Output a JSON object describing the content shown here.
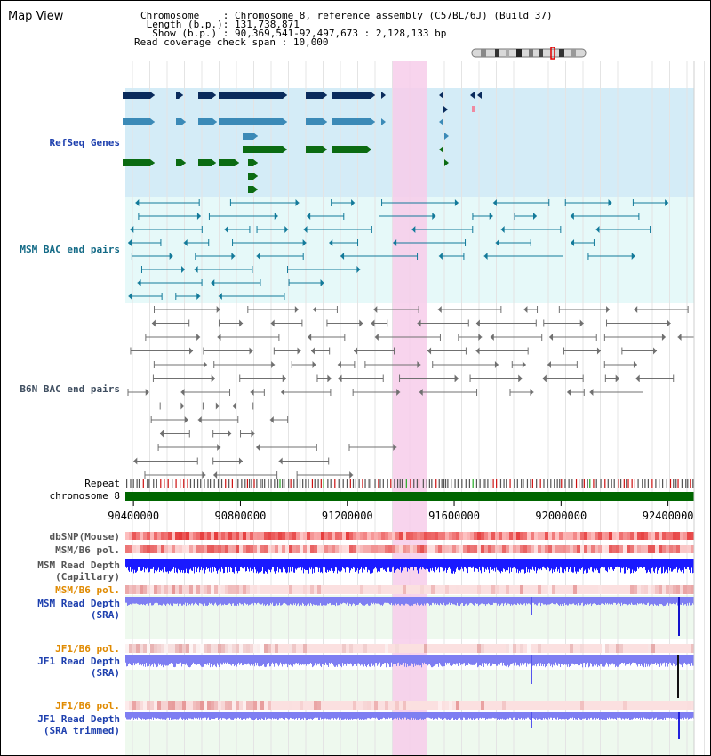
{
  "header": {
    "title": "Map View",
    "info_rows": [
      {
        "label": "Chromosome    ",
        "value": ": Chromosome 8, reference assembly (C57BL/6J) (Build 37)"
      },
      {
        "label": " Length (b.p.)",
        "value": ": 131,738,871"
      },
      {
        "label": "  Show (b.p.) ",
        "value": ": 90,369,541-92,497,673 : 2,128,133 bp"
      },
      {
        "label": "Read coverage check span",
        "value": " : 10,000"
      }
    ]
  },
  "colors": {
    "refseq_bg": "#d4ecf7",
    "bac_bg": "#e6f9f9",
    "highlight": "#f7cdea",
    "gene_navy": "#0a2b5c",
    "gene_steel": "#3b8ab7",
    "gene_green": "#0b6b12",
    "msm_bac": "#137a9a",
    "b6n_bac": "#707070",
    "chromosome_bar": "#006600",
    "snp_red": "#ee3a3a",
    "depth_capillary": "#1a1aff",
    "depth_sra": "#7e7ef2",
    "depth_bg": "#eef9ee"
  },
  "tracks": {
    "refseq": "RefSeq Genes",
    "msm_bac": "MSM BAC end pairs",
    "b6n_bac": "B6N BAC end pairs",
    "repeat": "Repeat",
    "chromosome": "chromosome 8",
    "dbsnp": "dbSNP(Mouse)",
    "msm_b6_pol_1": "MSM/B6 pol.",
    "msm_read_depth_cap_1": "MSM Read Depth",
    "msm_read_depth_cap_2": "(Capillary)",
    "msm_b6_pol_2": "MSM/B6 pol.",
    "msm_read_depth_sra_1": "MSM Read Depth",
    "msm_read_depth_sra_2": "(SRA)",
    "jf1_b6_pol_1": "JF1/B6 pol.",
    "jf1_read_depth_sra_1": "JF1 Read Depth",
    "jf1_read_depth_sra_2": "(SRA)",
    "jf1_b6_pol_2": "JF1/B6 pol.",
    "jf1_read_depth_trim_1": "JF1 Read Depth",
    "jf1_read_depth_trim_2": "(SRA trimmed)"
  },
  "axis": {
    "range_bp": [
      90369541,
      92497673
    ],
    "ticks": [
      {
        "value": 90400000,
        "label": "90400000"
      },
      {
        "value": 90800000,
        "label": "90800000"
      },
      {
        "value": 91200000,
        "label": "91200000"
      },
      {
        "value": 91600000,
        "label": "91600000"
      },
      {
        "value": 92000000,
        "label": "92000000"
      },
      {
        "value": 92400000,
        "label": "92400000"
      }
    ],
    "highlight_bp": [
      91370000,
      91500000
    ]
  }
}
